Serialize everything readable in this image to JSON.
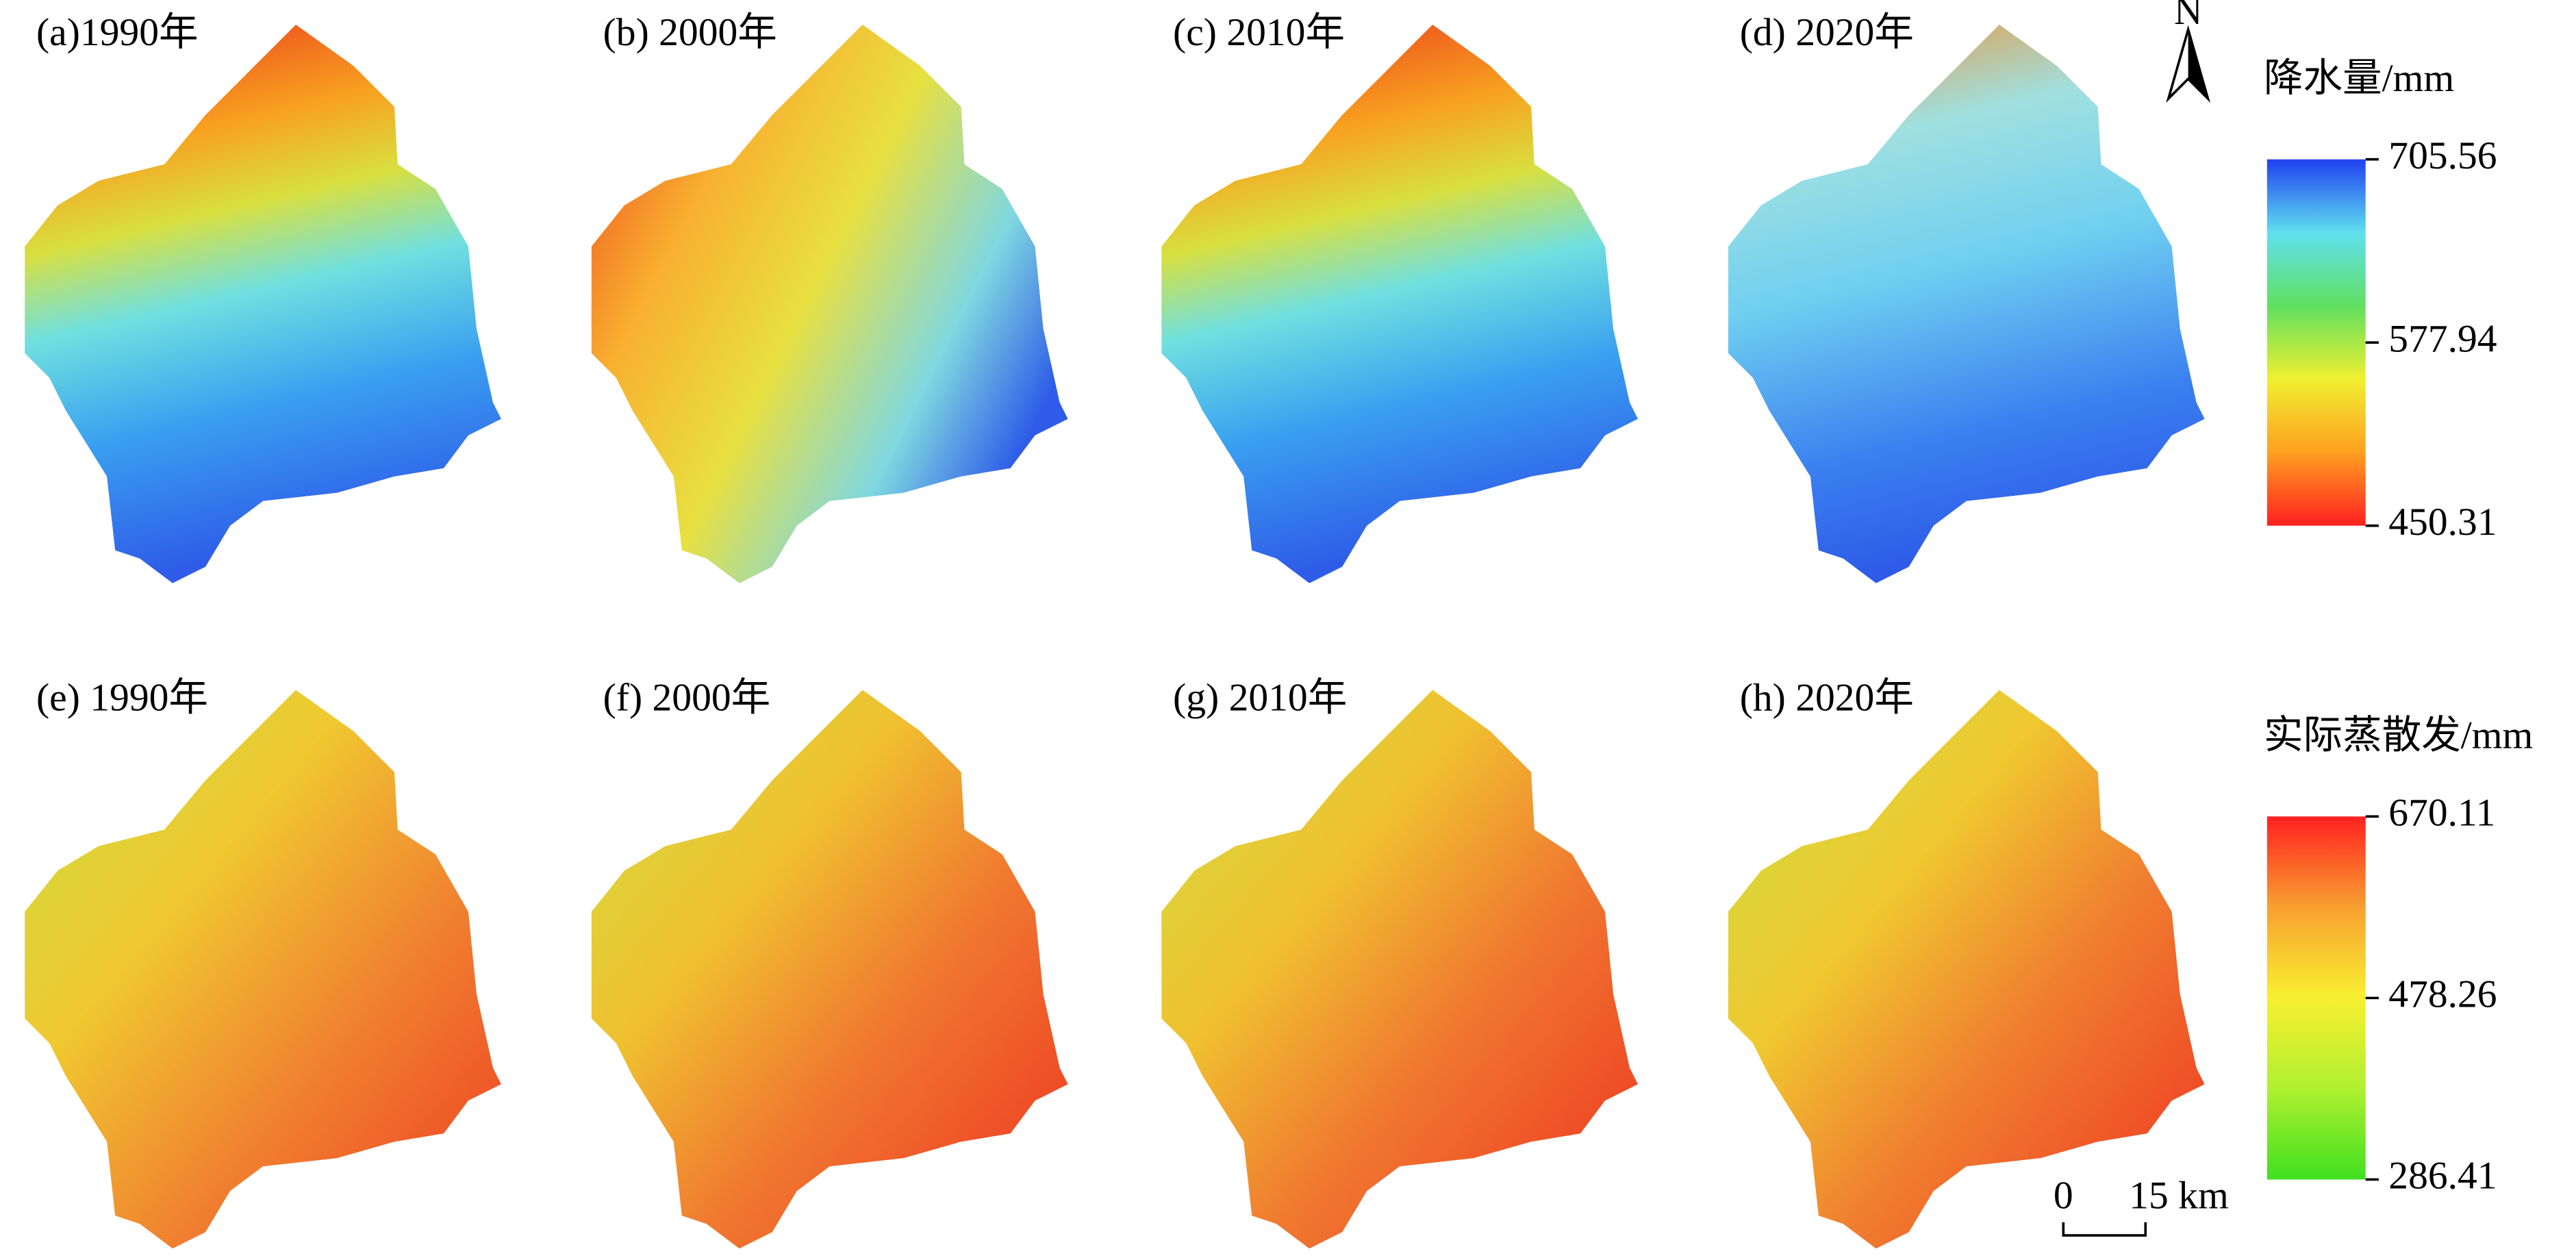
{
  "panels": [
    "(a)1990年",
    "(b) 2000年",
    "(c) 2010年",
    "(d) 2020年",
    "(e) 1990年",
    "(f) 2000年",
    "(g) 2010年",
    "(h) 2020年"
  ],
  "legends": [
    {
      "title": "降水量/mm",
      "lim": [
        450.31,
        705.56
      ],
      "ticks": [
        705.56,
        577.94,
        450.31
      ],
      "colors": [
        "#ff2020",
        "#ffa020",
        "#f0f030",
        "#60e060",
        "#60e0f0",
        "#2040f0"
      ]
    },
    {
      "title": "实际蒸散发/mm",
      "lim": [
        286.41,
        670.11
      ],
      "ticks": [
        670.11,
        478.26,
        286.41
      ],
      "colors": [
        "#40e020",
        "#b0f030",
        "#f8f030",
        "#f8a030",
        "#ff2020"
      ]
    }
  ],
  "north": "N",
  "scale_bar": {
    "start": "0",
    "end": "15 km"
  }
}
